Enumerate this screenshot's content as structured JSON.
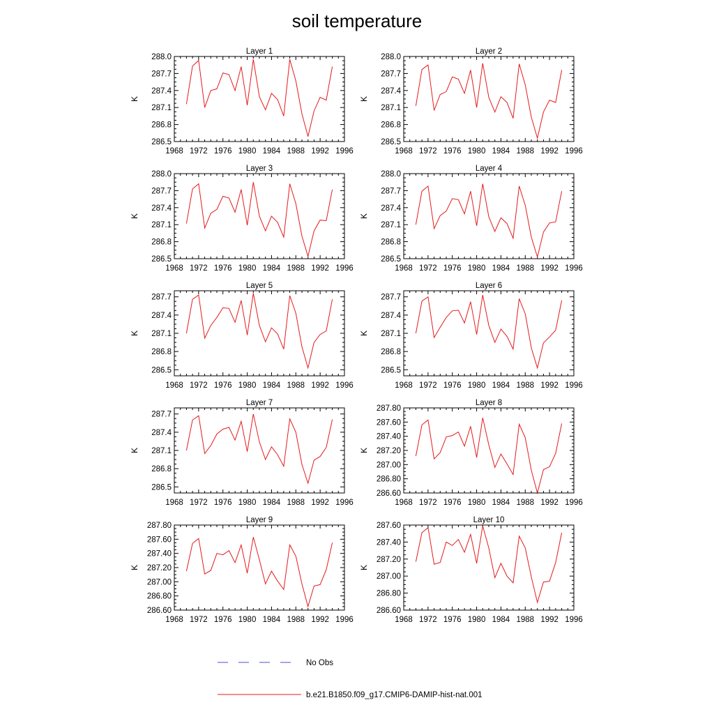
{
  "figure": {
    "title": "soil temperature",
    "legend": [
      {
        "label": "No Obs",
        "color": "#4d4dd9",
        "dashed": true
      },
      {
        "label": "b.e21.B1850.f09_g17.CMIP6-DAMIP-hist-nat.001",
        "color": "#e41a1c",
        "dashed": false
      }
    ]
  },
  "chart_data": [
    {
      "type": "line",
      "title": "Layer 1",
      "ylabel": "K",
      "xlim": [
        1968,
        1996
      ],
      "ylim": [
        286.5,
        288.0
      ],
      "xticks": [
        1968,
        1972,
        1976,
        1980,
        1984,
        1988,
        1992,
        1996
      ],
      "yticks": [
        "286.5",
        "286.8",
        "287.1",
        "287.4",
        "287.7",
        "288.0"
      ],
      "ytick_values": [
        286.5,
        286.8,
        287.1,
        287.4,
        287.7,
        288.0
      ],
      "series": [
        {
          "color": "#e41a1c",
          "x": [
            1970,
            1971,
            1972,
            1973,
            1974,
            1975,
            1976,
            1977,
            1978,
            1979,
            1980,
            1981,
            1982,
            1983,
            1984,
            1985,
            1986,
            1987,
            1988,
            1989,
            1990,
            1991,
            1992,
            1993,
            1994
          ],
          "values": [
            287.16,
            287.83,
            287.93,
            287.1,
            287.4,
            287.43,
            287.71,
            287.68,
            287.4,
            287.82,
            287.14,
            287.95,
            287.29,
            287.06,
            287.35,
            287.24,
            286.95,
            287.95,
            287.57,
            286.99,
            286.59,
            287.04,
            287.28,
            287.23,
            287.82
          ]
        }
      ]
    },
    {
      "type": "line",
      "title": "Layer 2",
      "ylabel": "K",
      "xlim": [
        1968,
        1996
      ],
      "ylim": [
        286.5,
        288.0
      ],
      "xticks": [
        1968,
        1972,
        1976,
        1980,
        1984,
        1988,
        1992,
        1996
      ],
      "yticks": [
        "286.5",
        "286.8",
        "287.1",
        "287.4",
        "287.7",
        "288.0"
      ],
      "ytick_values": [
        286.5,
        286.8,
        287.1,
        287.4,
        287.7,
        288.0
      ],
      "series": [
        {
          "color": "#e41a1c",
          "x": [
            1970,
            1971,
            1972,
            1973,
            1974,
            1975,
            1976,
            1977,
            1978,
            1979,
            1980,
            1981,
            1982,
            1983,
            1984,
            1985,
            1986,
            1987,
            1988,
            1989,
            1990,
            1991,
            1992,
            1993,
            1994
          ],
          "values": [
            287.13,
            287.77,
            287.85,
            287.05,
            287.33,
            287.38,
            287.64,
            287.6,
            287.35,
            287.76,
            287.1,
            287.88,
            287.28,
            287.02,
            287.29,
            287.19,
            286.91,
            287.87,
            287.5,
            286.93,
            286.56,
            287.02,
            287.23,
            287.19,
            287.76
          ]
        }
      ]
    },
    {
      "type": "line",
      "title": "Layer 3",
      "ylabel": "K",
      "xlim": [
        1968,
        1996
      ],
      "ylim": [
        286.5,
        288.0
      ],
      "xticks": [
        1968,
        1972,
        1976,
        1980,
        1984,
        1988,
        1992,
        1996
      ],
      "yticks": [
        "286.5",
        "286.8",
        "287.1",
        "287.4",
        "287.7",
        "288.0"
      ],
      "ytick_values": [
        286.5,
        286.8,
        287.1,
        287.4,
        287.7,
        288.0
      ],
      "series": [
        {
          "color": "#e41a1c",
          "x": [
            1970,
            1971,
            1972,
            1973,
            1974,
            1975,
            1976,
            1977,
            1978,
            1979,
            1980,
            1981,
            1982,
            1983,
            1984,
            1985,
            1986,
            1987,
            1988,
            1989,
            1990,
            1991,
            1992,
            1993,
            1994
          ],
          "values": [
            287.12,
            287.73,
            287.82,
            287.04,
            287.3,
            287.37,
            287.6,
            287.57,
            287.32,
            287.72,
            287.09,
            287.85,
            287.25,
            286.99,
            287.25,
            287.14,
            286.88,
            287.82,
            287.47,
            286.9,
            286.54,
            286.99,
            287.18,
            287.17,
            287.72
          ]
        }
      ]
    },
    {
      "type": "line",
      "title": "Layer 4",
      "ylabel": "K",
      "xlim": [
        1968,
        1996
      ],
      "ylim": [
        286.5,
        288.0
      ],
      "xticks": [
        1968,
        1972,
        1976,
        1980,
        1984,
        1988,
        1992,
        1996
      ],
      "yticks": [
        "286.5",
        "286.8",
        "287.1",
        "287.4",
        "287.7",
        "288.0"
      ],
      "ytick_values": [
        286.5,
        286.8,
        287.1,
        287.4,
        287.7,
        288.0
      ],
      "series": [
        {
          "color": "#e41a1c",
          "x": [
            1970,
            1971,
            1972,
            1973,
            1974,
            1975,
            1976,
            1977,
            1978,
            1979,
            1980,
            1981,
            1982,
            1983,
            1984,
            1985,
            1986,
            1987,
            1988,
            1989,
            1990,
            1991,
            1992,
            1993,
            1994
          ],
          "values": [
            287.1,
            287.69,
            287.78,
            287.03,
            287.26,
            287.34,
            287.56,
            287.54,
            287.29,
            287.69,
            287.08,
            287.82,
            287.24,
            286.98,
            287.22,
            287.12,
            286.86,
            287.78,
            287.44,
            286.88,
            286.53,
            286.97,
            287.13,
            287.15,
            287.69
          ]
        }
      ]
    },
    {
      "type": "line",
      "title": "Layer 5",
      "ylabel": "K",
      "xlim": [
        1968,
        1996
      ],
      "ylim": [
        286.4,
        287.8
      ],
      "xticks": [
        1968,
        1972,
        1976,
        1980,
        1984,
        1988,
        1992,
        1996
      ],
      "yticks": [
        "286.5",
        "286.8",
        "287.1",
        "287.4",
        "287.7"
      ],
      "ytick_values": [
        286.5,
        286.8,
        287.1,
        287.4,
        287.7
      ],
      "series": [
        {
          "color": "#e41a1c",
          "x": [
            1970,
            1971,
            1972,
            1973,
            1974,
            1975,
            1976,
            1977,
            1978,
            1979,
            1980,
            1981,
            1982,
            1983,
            1984,
            1985,
            1986,
            1987,
            1988,
            1989,
            1990,
            1991,
            1992,
            1993,
            1994
          ],
          "values": [
            287.1,
            287.66,
            287.73,
            287.02,
            287.23,
            287.36,
            287.52,
            287.51,
            287.28,
            287.64,
            287.07,
            287.76,
            287.23,
            286.96,
            287.19,
            287.09,
            286.84,
            287.72,
            287.43,
            286.88,
            286.53,
            286.95,
            287.08,
            287.14,
            287.66
          ]
        }
      ]
    },
    {
      "type": "line",
      "title": "Layer 6",
      "ylabel": "K",
      "xlim": [
        1968,
        1996
      ],
      "ylim": [
        286.4,
        287.8
      ],
      "xticks": [
        1968,
        1972,
        1976,
        1980,
        1984,
        1988,
        1992,
        1996
      ],
      "yticks": [
        "286.5",
        "286.8",
        "287.1",
        "287.4",
        "287.7"
      ],
      "ytick_values": [
        286.5,
        286.8,
        287.1,
        287.4,
        287.7
      ],
      "series": [
        {
          "color": "#e41a1c",
          "x": [
            1970,
            1971,
            1972,
            1973,
            1974,
            1975,
            1976,
            1977,
            1978,
            1979,
            1980,
            1981,
            1982,
            1983,
            1984,
            1985,
            1986,
            1987,
            1988,
            1989,
            1990,
            1991,
            1992,
            1993,
            1994
          ],
          "values": [
            287.1,
            287.63,
            287.7,
            287.03,
            287.2,
            287.36,
            287.47,
            287.48,
            287.27,
            287.62,
            287.08,
            287.73,
            287.23,
            286.95,
            287.17,
            287.05,
            286.84,
            287.67,
            287.42,
            286.86,
            286.53,
            286.94,
            287.04,
            287.15,
            287.64
          ]
        }
      ]
    },
    {
      "type": "line",
      "title": "Layer 7",
      "ylabel": "K",
      "xlim": [
        1968,
        1996
      ],
      "ylim": [
        286.4,
        287.8
      ],
      "xticks": [
        1968,
        1972,
        1976,
        1980,
        1984,
        1988,
        1992,
        1996
      ],
      "yticks": [
        "286.5",
        "286.8",
        "287.1",
        "287.4",
        "287.7"
      ],
      "ytick_values": [
        286.5,
        286.8,
        287.1,
        287.4,
        287.7
      ],
      "series": [
        {
          "color": "#e41a1c",
          "x": [
            1970,
            1971,
            1972,
            1973,
            1974,
            1975,
            1976,
            1977,
            1978,
            1979,
            1980,
            1981,
            1982,
            1983,
            1984,
            1985,
            1986,
            1987,
            1988,
            1989,
            1990,
            1991,
            1992,
            1993,
            1994
          ],
          "values": [
            287.1,
            287.6,
            287.67,
            287.05,
            287.18,
            287.37,
            287.45,
            287.48,
            287.27,
            287.58,
            287.08,
            287.7,
            287.24,
            286.95,
            287.16,
            287.03,
            286.84,
            287.62,
            287.4,
            286.87,
            286.56,
            286.94,
            287.0,
            287.15,
            287.61
          ]
        }
      ]
    },
    {
      "type": "line",
      "title": "Layer 8",
      "ylabel": "K",
      "xlim": [
        1968,
        1996
      ],
      "ylim": [
        286.6,
        287.8
      ],
      "xticks": [
        1968,
        1972,
        1976,
        1980,
        1984,
        1988,
        1992,
        1996
      ],
      "yticks": [
        "286.60",
        "286.80",
        "287.00",
        "287.20",
        "287.40",
        "287.60",
        "287.80"
      ],
      "ytick_values": [
        286.6,
        286.8,
        287.0,
        287.2,
        287.4,
        287.6,
        287.8
      ],
      "series": [
        {
          "color": "#e41a1c",
          "x": [
            1970,
            1971,
            1972,
            1973,
            1974,
            1975,
            1976,
            1977,
            1978,
            1979,
            1980,
            1981,
            1982,
            1983,
            1984,
            1985,
            1986,
            1987,
            1988,
            1989,
            1990,
            1991,
            1992,
            1993,
            1994
          ],
          "values": [
            287.12,
            287.56,
            287.63,
            287.08,
            287.17,
            287.39,
            287.41,
            287.46,
            287.26,
            287.54,
            287.1,
            287.66,
            287.28,
            286.96,
            287.15,
            287.01,
            286.86,
            287.57,
            287.38,
            286.92,
            286.6,
            286.93,
            286.97,
            287.16,
            287.58
          ]
        }
      ]
    },
    {
      "type": "line",
      "title": "Layer 9",
      "ylabel": "K",
      "xlim": [
        1968,
        1996
      ],
      "ylim": [
        286.6,
        287.8
      ],
      "xticks": [
        1968,
        1972,
        1976,
        1980,
        1984,
        1988,
        1992,
        1996
      ],
      "yticks": [
        "286.60",
        "286.80",
        "287.00",
        "287.20",
        "287.40",
        "287.60",
        "287.80"
      ],
      "ytick_values": [
        286.6,
        286.8,
        287.0,
        287.2,
        287.4,
        287.6,
        287.8
      ],
      "series": [
        {
          "color": "#e41a1c",
          "x": [
            1970,
            1971,
            1972,
            1973,
            1974,
            1975,
            1976,
            1977,
            1978,
            1979,
            1980,
            1981,
            1982,
            1983,
            1984,
            1985,
            1986,
            1987,
            1988,
            1989,
            1990,
            1991,
            1992,
            1993,
            1994
          ],
          "values": [
            287.15,
            287.54,
            287.61,
            287.11,
            287.16,
            287.4,
            287.38,
            287.44,
            287.27,
            287.52,
            287.12,
            287.63,
            287.31,
            286.97,
            287.15,
            287.01,
            286.89,
            287.52,
            287.36,
            286.97,
            286.65,
            286.94,
            286.96,
            287.17,
            287.55
          ]
        }
      ]
    },
    {
      "type": "line",
      "title": "Layer 10",
      "ylabel": "K",
      "xlim": [
        1968,
        1996
      ],
      "ylim": [
        286.6,
        287.6
      ],
      "xticks": [
        1968,
        1972,
        1976,
        1980,
        1984,
        1988,
        1992,
        1996
      ],
      "yticks": [
        "286.60",
        "286.80",
        "287.00",
        "287.20",
        "287.40",
        "287.60"
      ],
      "ytick_values": [
        286.6,
        286.8,
        287.0,
        287.2,
        287.4,
        287.6
      ],
      "series": [
        {
          "color": "#e41a1c",
          "x": [
            1970,
            1971,
            1972,
            1973,
            1974,
            1975,
            1976,
            1977,
            1978,
            1979,
            1980,
            1981,
            1982,
            1983,
            1984,
            1985,
            1986,
            1987,
            1988,
            1989,
            1990,
            1991,
            1992,
            1993,
            1994
          ],
          "values": [
            287.17,
            287.51,
            287.57,
            287.14,
            287.16,
            287.4,
            287.36,
            287.43,
            287.28,
            287.49,
            287.15,
            287.59,
            287.33,
            286.98,
            287.15,
            287.0,
            286.92,
            287.47,
            287.33,
            286.99,
            286.69,
            286.93,
            286.94,
            287.16,
            287.51
          ]
        }
      ]
    }
  ]
}
